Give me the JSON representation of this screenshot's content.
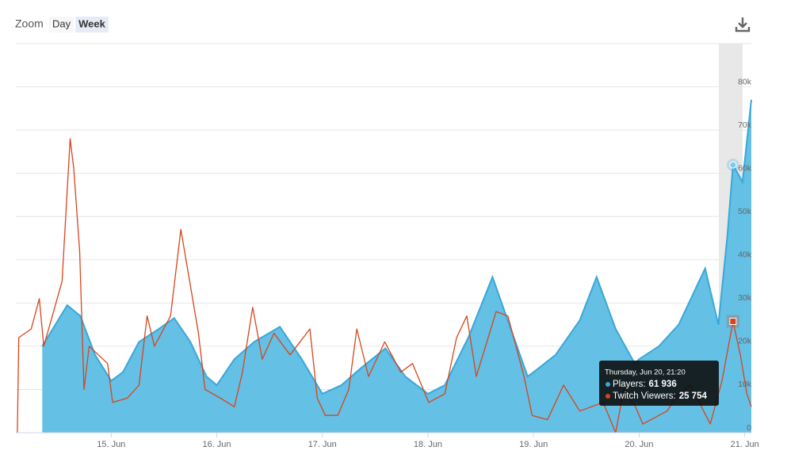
{
  "chart_data": {
    "type": "area-line",
    "zoom": {
      "label": "Zoom",
      "buttons": [
        "Day",
        "Week"
      ],
      "selected": 1
    },
    "xlim": [
      "Jun 14, 02:20",
      "Jun 21, 01:30"
    ],
    "xticks": [
      {
        "value": "Jun 15, 00:00",
        "label": "15. Jun"
      },
      {
        "value": "Jun 16, 00:00",
        "label": "16. Jun"
      },
      {
        "value": "Jun 17, 00:00",
        "label": "17. Jun"
      },
      {
        "value": "Jun 18, 00:00",
        "label": "18. Jun"
      },
      {
        "value": "Jun 19, 00:00",
        "label": "19. Jun"
      },
      {
        "value": "Jun 20, 00:00",
        "label": "20. Jun"
      },
      {
        "value": "Jun 21, 00:00",
        "label": "21. Jun"
      }
    ],
    "ylim": [
      0,
      90000
    ],
    "yticks": [
      0,
      {
        "value": 10000,
        "label": "10k"
      },
      {
        "value": 20000,
        "label": "20k"
      },
      {
        "value": 30000,
        "label": "30k"
      },
      {
        "value": 40000,
        "label": "40k"
      },
      {
        "value": 50000,
        "label": "50k"
      },
      {
        "value": 60000,
        "label": "60k"
      },
      {
        "value": 70000,
        "label": "70k"
      },
      {
        "value": 80000,
        "label": "80k"
      }
    ],
    "grid": true,
    "series": [
      {
        "name": "Players",
        "kind": "area",
        "color": "#3aa7d8",
        "fill": "#64c0e4",
        "x": [
          "Jun 14, 08:20",
          "Jun 14, 14:00",
          "Jun 14, 17:00",
          "Jun 14, 20:20",
          "Jun 15, 00:00",
          "Jun 15, 02:40",
          "Jun 15, 06:20",
          "Jun 15, 10:50",
          "Jun 15, 14:20",
          "Jun 15, 18:00",
          "Jun 15, 21:40",
          "Jun 16, 00:00",
          "Jun 16, 04:00",
          "Jun 16, 08:30",
          "Jun 16, 14:20",
          "Jun 16, 19:20",
          "Jun 17, 00:00",
          "Jun 17, 04:20",
          "Jun 17, 08:50",
          "Jun 17, 14:20",
          "Jun 17, 18:50",
          "Jun 18, 00:00",
          "Jun 18, 03:50",
          "Jun 18, 09:10",
          "Jun 18, 14:40",
          "Jun 18, 19:10",
          "Jun 18, 22:40",
          "Jun 19, 00:00",
          "Jun 19, 05:00",
          "Jun 19, 10:30",
          "Jun 19, 14:20",
          "Jun 19, 18:40",
          "Jun 19, 23:00",
          "Jun 20, 00:00",
          "Jun 20, 04:30",
          "Jun 20, 09:00",
          "Jun 20, 15:00",
          "Jun 20, 18:00",
          "Jun 20, 20:00",
          "Jun 20, 21:20",
          "Jun 20, 23:30",
          "Jun 21, 01:30"
        ],
        "values": [
          20000,
          29500,
          27000,
          18000,
          12000,
          14000,
          21000,
          24000,
          26500,
          21000,
          13000,
          11000,
          17000,
          21000,
          24500,
          17000,
          9000,
          11000,
          15000,
          19500,
          13000,
          9000,
          11000,
          22000,
          36000,
          23000,
          13000,
          14000,
          18000,
          26000,
          36000,
          24000,
          16000,
          17000,
          20000,
          25000,
          38000,
          25000,
          45000,
          61936,
          58000,
          77000
        ]
      },
      {
        "name": "Twitch Viewers",
        "kind": "line",
        "color": "#d8441c",
        "x": [
          "Jun 14, 02:40",
          "Jun 14, 03:00",
          "Jun 14, 05:50",
          "Jun 14, 07:40",
          "Jun 14, 08:40",
          "Jun 14, 12:50",
          "Jun 14, 14:40",
          "Jun 14, 15:30",
          "Jun 14, 16:50",
          "Jun 14, 17:50",
          "Jun 14, 19:00",
          "Jun 14, 23:10",
          "Jun 15, 00:20",
          "Jun 15, 03:40",
          "Jun 15, 06:20",
          "Jun 15, 08:10",
          "Jun 15, 09:50",
          "Jun 15, 13:30",
          "Jun 15, 15:50",
          "Jun 15, 17:40",
          "Jun 15, 19:50",
          "Jun 15, 21:20",
          "Jun 16, 00:50",
          "Jun 16, 04:00",
          "Jun 16, 05:50",
          "Jun 16, 08:10",
          "Jun 16, 10:20",
          "Jun 16, 13:00",
          "Jun 16, 16:40",
          "Jun 16, 21:10",
          "Jun 16, 22:50",
          "Jun 17, 00:40",
          "Jun 17, 03:30",
          "Jun 17, 06:00",
          "Jun 17, 07:50",
          "Jun 17, 10:30",
          "Jun 17, 14:10",
          "Jun 17, 17:50",
          "Jun 17, 20:30",
          "Jun 18, 00:10",
          "Jun 18, 03:50",
          "Jun 18, 06:30",
          "Jun 18, 08:50",
          "Jun 18, 11:00",
          "Jun 18, 15:30",
          "Jun 18, 18:10",
          "Jun 18, 21:50",
          "Jun 18, 23:40",
          "Jun 19, 03:10",
          "Jun 19, 06:50",
          "Jun 19, 10:30",
          "Jun 19, 15:50",
          "Jun 19, 18:40",
          "Jun 19, 20:30",
          "Jun 19, 23:10",
          "Jun 20, 00:50",
          "Jun 20, 06:20",
          "Jun 20, 09:00",
          "Jun 20, 11:40",
          "Jun 20, 16:10",
          "Jun 20, 18:50",
          "Jun 20, 21:20",
          "Jun 20, 23:00",
          "Jun 21, 00:30",
          "Jun 21, 01:30"
        ],
        "values": [
          0,
          22000,
          24000,
          31000,
          20000,
          35000,
          68000,
          61000,
          42000,
          10000,
          20000,
          16000,
          7000,
          8000,
          11000,
          27000,
          20000,
          27000,
          47000,
          36000,
          23000,
          10000,
          8000,
          6000,
          14000,
          29000,
          17000,
          23000,
          18000,
          24000,
          8000,
          4000,
          4000,
          10000,
          24000,
          13000,
          21000,
          14000,
          16000,
          7000,
          9000,
          22000,
          27000,
          13000,
          28000,
          27000,
          13000,
          4000,
          3000,
          11000,
          5000,
          7000,
          0,
          10000,
          6000,
          2000,
          5000,
          9000,
          11000,
          2000,
          12000,
          25754,
          18000,
          9000,
          6000
        ]
      }
    ],
    "tooltip": {
      "title": "Thursday, Jun 20, 21:20",
      "labels": [
        "Players:",
        "Twitch Viewers:"
      ],
      "values": [
        61936,
        25754
      ],
      "value_labels": [
        "61 936",
        "25 754"
      ]
    }
  }
}
